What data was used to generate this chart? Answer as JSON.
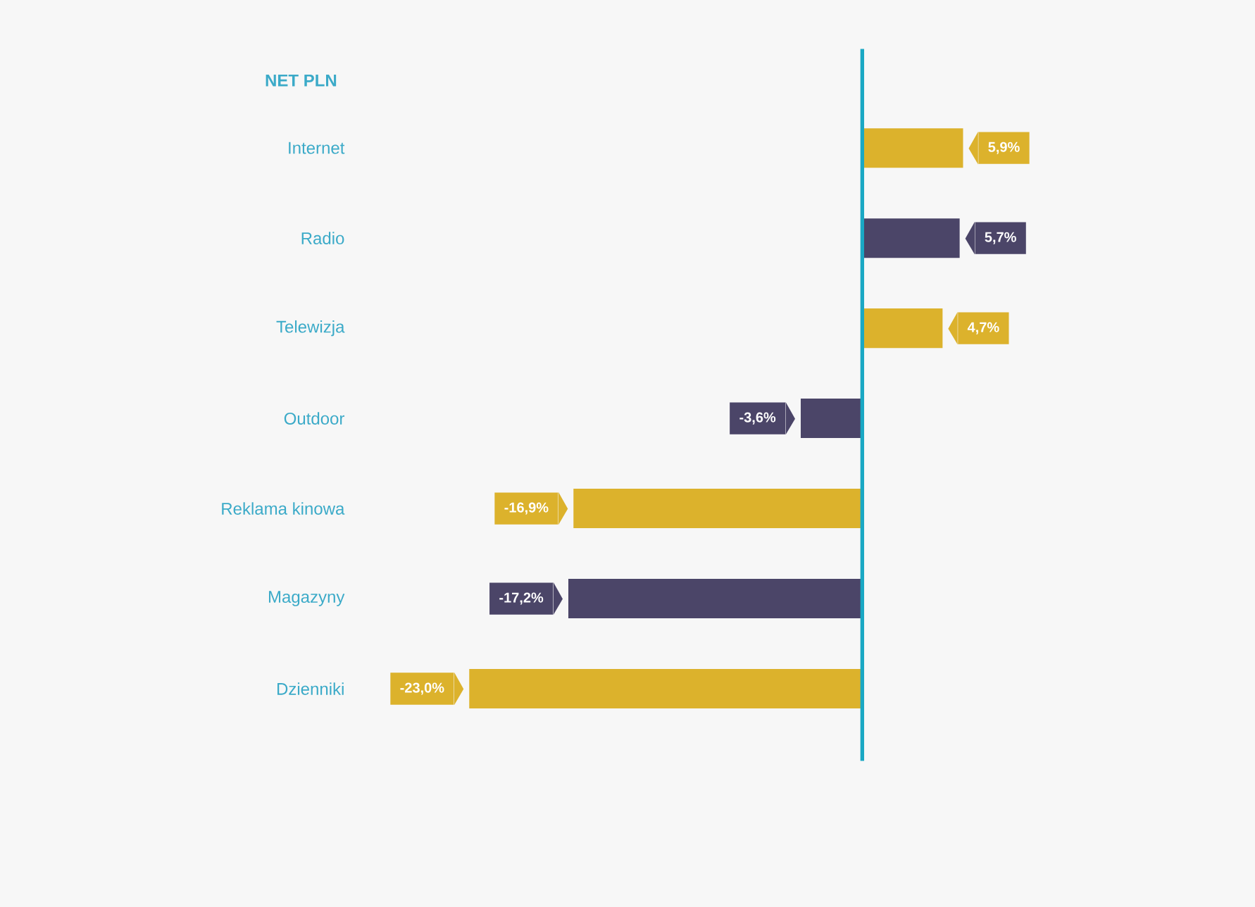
{
  "chart_data": {
    "type": "bar",
    "orientation": "horizontal",
    "title": "NET PLN",
    "categories": [
      "Internet",
      "Radio",
      "Telewizja",
      "Outdoor",
      "Reklama kinowa",
      "Magazyny",
      "Dzienniki"
    ],
    "values": [
      5.9,
      5.7,
      4.7,
      -3.6,
      -16.9,
      -17.2,
      -23.0
    ],
    "value_labels": [
      "5,9%",
      "5,7%",
      "4,7%",
      "-3,6%",
      "-16,9%",
      "-17,2%",
      "-23,0%"
    ],
    "colors": [
      "#dcb22c",
      "#4b4568",
      "#dcb22c",
      "#4b4568",
      "#dcb22c",
      "#4b4568",
      "#dcb22c"
    ],
    "tick_labels": "y",
    "ref_lines": [
      {
        "axis": "x",
        "value": 0,
        "color": "#1aa8c4"
      }
    ]
  }
}
